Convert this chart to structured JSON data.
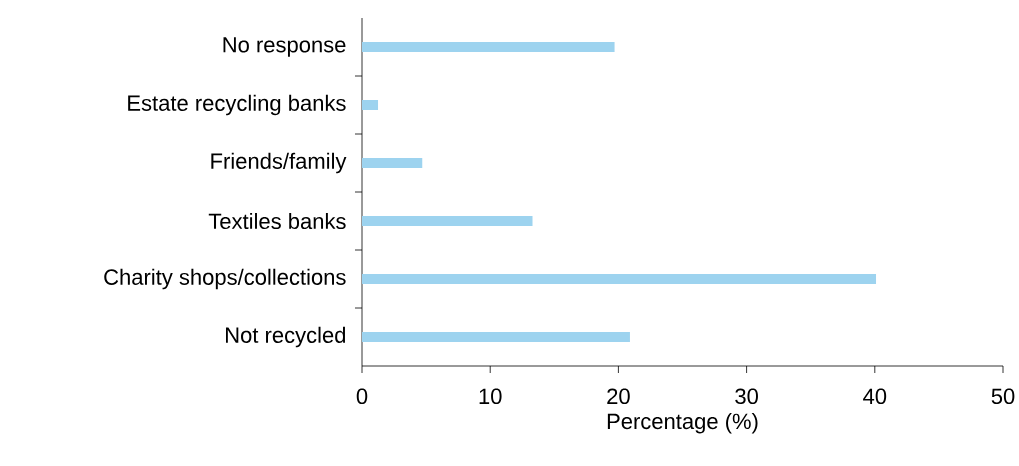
{
  "chart_data": {
    "type": "bar",
    "orientation": "horizontal",
    "xlabel": "Percentage (%)",
    "categories": [
      "No response",
      "Estate recycling banks",
      "Friends/family",
      "Textiles banks",
      "Charity shops/collections",
      "Not recycled"
    ],
    "values": [
      19.7,
      1.25,
      4.7,
      13.3,
      40.1,
      20.9
    ],
    "color": "#9dd3ef",
    "xlim": [
      0,
      50
    ],
    "xticks": [
      0,
      10,
      20,
      30,
      40,
      50
    ]
  }
}
